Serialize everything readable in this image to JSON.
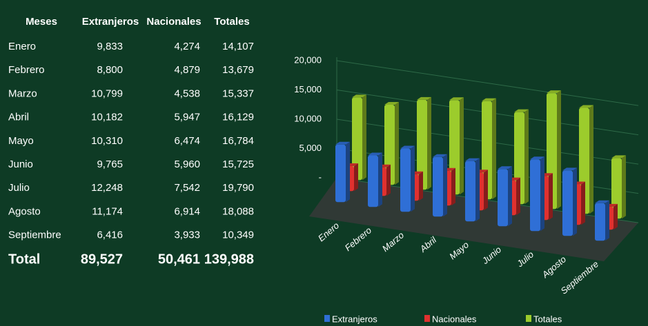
{
  "table": {
    "header": [
      "Meses",
      "Extranjeros",
      "Nacionales",
      "Totales"
    ],
    "rows": [
      [
        "Enero",
        "9,833",
        "4,274",
        "14,107"
      ],
      [
        "Febrero",
        "8,800",
        "4,879",
        "13,679"
      ],
      [
        "Marzo",
        "10,799",
        "4,538",
        "15,337"
      ],
      [
        "Abril",
        "10,182",
        "5,947",
        "16,129"
      ],
      [
        "Mayo",
        "10,310",
        "6,474",
        "16,784"
      ],
      [
        "Junio",
        "9,765",
        "5,960",
        "15,725"
      ],
      [
        "Julio",
        "12,248",
        "7,542",
        "19,790"
      ],
      [
        "Agosto",
        "11,174",
        "6,914",
        "18,088"
      ],
      [
        "Septiembre",
        "6,416",
        "3,933",
        "10,349"
      ]
    ],
    "total": [
      "Total",
      "89,527",
      "50,461",
      "139,988"
    ]
  },
  "chart_data": {
    "type": "bar3d",
    "categories": [
      "Enero",
      "Febrero",
      "Marzo",
      "Abril",
      "Mayo",
      "Junio",
      "Julio",
      "Agosto",
      "Septiembre"
    ],
    "series": [
      {
        "name": "Extranjeros",
        "color": "#2f6fd6",
        "values": [
          9833,
          8800,
          10799,
          10182,
          10310,
          9765,
          12248,
          11174,
          6416
        ]
      },
      {
        "name": "Nacionales",
        "color": "#e0312f",
        "values": [
          4274,
          4879,
          4538,
          5947,
          6474,
          5960,
          7542,
          6914,
          3933
        ]
      },
      {
        "name": "Totales",
        "color": "#9ccc2c",
        "values": [
          14107,
          13679,
          15337,
          16129,
          16784,
          15725,
          19790,
          18088,
          10349
        ]
      }
    ],
    "ylim": [
      0,
      20000
    ],
    "yticks": [
      {
        "value": 0,
        "label": "-"
      },
      {
        "value": 5000,
        "label": "5,000"
      },
      {
        "value": 10000,
        "label": "10,000"
      },
      {
        "value": 15000,
        "label": "15,000"
      },
      {
        "value": 20000,
        "label": "20,000"
      }
    ],
    "grid": true,
    "legend": "bottom"
  }
}
